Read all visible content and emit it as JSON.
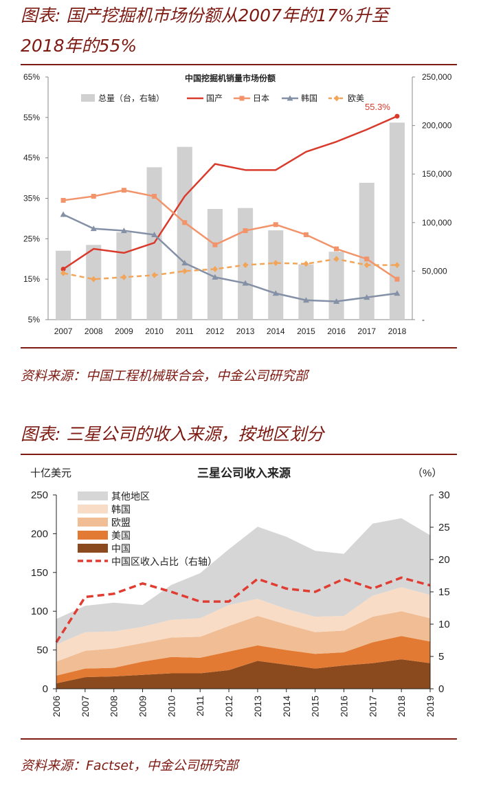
{
  "figure1": {
    "title_line1": "图表: 国产挖掘机市场份额从2007年的17%升至",
    "title_line2": "2018年的55%",
    "source": "资料来源：中国工程机械联合会，中金公司研究部"
  },
  "figure2": {
    "title": "图表: 三星公司的收入来源，按地区划分",
    "source": "资料来源：Factset，中金公司研究部"
  },
  "chart_data": [
    {
      "type": "bar",
      "title": "中国挖掘机销量市场份额",
      "categories": [
        "2007",
        "2008",
        "2009",
        "2010",
        "2011",
        "2012",
        "2013",
        "2014",
        "2015",
        "2016",
        "2017",
        "2018"
      ],
      "y_ticks": [
        "5%",
        "15%",
        "25%",
        "35%",
        "45%",
        "55%",
        "65%"
      ],
      "y2_ticks": [
        "-",
        "50,000",
        "100,000",
        "150,000",
        "200,000",
        "250,000"
      ],
      "ylim": [
        5,
        65
      ],
      "y2lim": [
        0,
        250000
      ],
      "bar_series": {
        "name": "总量（台，右轴）",
        "color": "#d0d0d0",
        "values": [
          71000,
          77000,
          90000,
          157000,
          178000,
          114000,
          115000,
          92000,
          57000,
          70000,
          141000,
          203000
        ]
      },
      "series": [
        {
          "name": "国产",
          "color": "#d93a2c",
          "style": "solid",
          "marker": "dot",
          "values": [
            17.5,
            22.5,
            21.5,
            24.0,
            35.5,
            43.5,
            42.0,
            42.0,
            46.5,
            49.0,
            52.0,
            55.3
          ]
        },
        {
          "name": "日本",
          "color": "#f2936a",
          "style": "solid",
          "marker": "square",
          "values": [
            34.5,
            35.5,
            37.0,
            35.5,
            29.0,
            23.5,
            27.0,
            28.5,
            26.0,
            22.5,
            20.0,
            15.0
          ]
        },
        {
          "name": "韩国",
          "color": "#8390a6",
          "style": "solid",
          "marker": "triangle",
          "values": [
            31.0,
            27.5,
            27.0,
            26.0,
            19.0,
            15.5,
            14.0,
            11.5,
            9.8,
            9.5,
            10.5,
            11.5
          ]
        },
        {
          "name": "欧美",
          "color": "#f2a559",
          "style": "dashed",
          "marker": "diamond",
          "values": [
            16.5,
            15.0,
            15.5,
            16.0,
            17.0,
            17.5,
            18.5,
            19.0,
            18.8,
            20.0,
            18.5,
            18.5
          ]
        }
      ],
      "annotation": "55.3%",
      "legend_position": "top"
    },
    {
      "type": "area",
      "title": "三星公司收入来源",
      "ylabel": "十亿美元",
      "y2label": "（%）",
      "x": [
        "2006",
        "2007",
        "2008",
        "2009",
        "2010",
        "2011",
        "2012",
        "2013",
        "2014",
        "2015",
        "2016",
        "2017",
        "2018",
        "2019"
      ],
      "ylim": [
        0,
        250
      ],
      "y_ticks": [
        "0",
        "50",
        "100",
        "150",
        "200",
        "250"
      ],
      "y2lim": [
        0,
        30
      ],
      "y2_ticks": [
        "0",
        "5",
        "10",
        "15",
        "20",
        "25",
        "30"
      ],
      "stack_series": [
        {
          "name": "中国",
          "color": "#8a4a1d",
          "values": [
            7,
            15,
            16,
            18,
            20,
            20,
            24,
            36,
            31,
            26,
            30,
            33,
            38,
            33
          ]
        },
        {
          "name": "美国",
          "color": "#e37a34",
          "values": [
            10,
            11,
            11,
            17,
            21,
            20,
            24,
            20,
            19,
            19,
            17,
            27,
            30,
            28
          ]
        },
        {
          "name": "欧盟",
          "color": "#f0bd94",
          "values": [
            18,
            23,
            25,
            24,
            25,
            27,
            33,
            38,
            33,
            28,
            28,
            33,
            32,
            30
          ]
        },
        {
          "name": "韩国",
          "color": "#f8dcc6",
          "values": [
            22,
            24,
            22,
            21,
            23,
            24,
            27,
            22,
            20,
            20,
            19,
            27,
            31,
            30
          ]
        },
        {
          "name": "其他地区",
          "color": "#d6d6d6",
          "values": [
            33,
            34,
            37,
            28,
            45,
            58,
            72,
            93,
            93,
            85,
            80,
            93,
            89,
            77
          ]
        }
      ],
      "line_series": {
        "name": "中国区收入占比（右轴）",
        "color": "#e03c31",
        "style": "dashed",
        "values": [
          7.2,
          14.2,
          14.7,
          16.3,
          15.0,
          13.5,
          13.5,
          17.0,
          15.5,
          15.0,
          17.0,
          15.5,
          17.2,
          16.0
        ]
      },
      "legend_position": "top-left"
    }
  ]
}
